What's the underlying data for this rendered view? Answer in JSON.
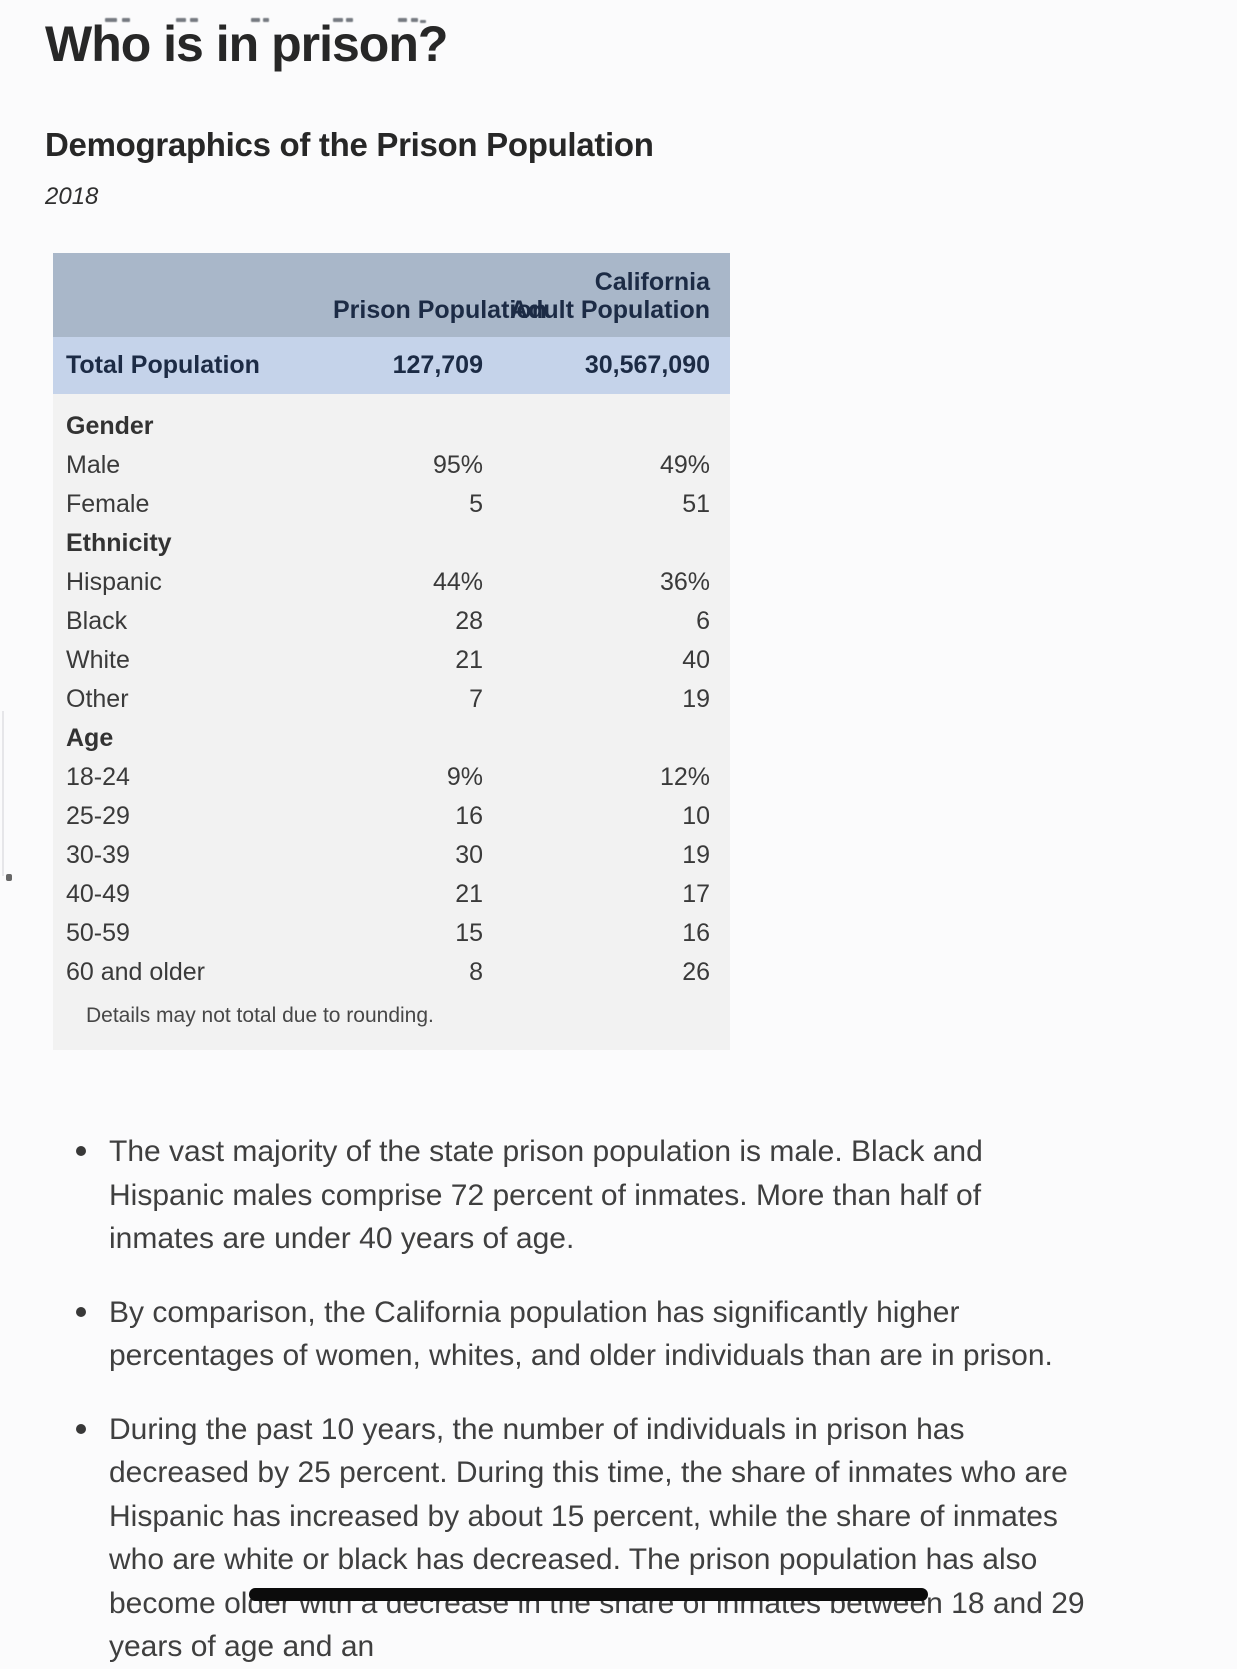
{
  "header": {
    "title": "Who is in prison?",
    "section_title": "Demographics of the Prison Population",
    "subtitle": "2018"
  },
  "table": {
    "col2_header": "Prison Population",
    "col3_header_line1": "California",
    "col3_header_line2": "Adult Population",
    "total": {
      "label": "Total Population",
      "prison": "127,709",
      "california": "30,567,090"
    },
    "sections": [
      {
        "header": "Gender",
        "rows": [
          [
            "Male",
            "95%",
            "49%"
          ],
          [
            "Female",
            "5",
            "51"
          ]
        ]
      },
      {
        "header": "Ethnicity",
        "rows": [
          [
            "Hispanic",
            "44%",
            "36%"
          ],
          [
            "Black",
            "28",
            "6"
          ],
          [
            "White",
            "21",
            "40"
          ],
          [
            "Other",
            "7",
            "19"
          ]
        ]
      },
      {
        "header": "Age",
        "rows": [
          [
            "18-24",
            "9%",
            "12%"
          ],
          [
            "25-29",
            "16",
            "10"
          ],
          [
            "30-39",
            "30",
            "19"
          ],
          [
            "40-49",
            "21",
            "17"
          ],
          [
            "50-59",
            "15",
            "16"
          ],
          [
            "60 and older",
            "8",
            "26"
          ]
        ]
      }
    ],
    "footnote": "Details may not total due to rounding."
  },
  "bullets": [
    "The vast majority of the state prison population is male. Black and Hispanic males comprise 72 percent of inmates. More than half of inmates are under 40 years of age.",
    "By comparison, the California population has significantly higher percentages of women, whites, and older individuals than are in prison.",
    "During the past 10 years, the number of individuals in prison has decreased by 25 percent. During this time, the share of inmates who are Hispanic has increased by about 15 percent, while the share of inmates who are white or black has decreased. The prison population has also become older with a decrease in the share of inmates between 18 and 29 years of age and an"
  ],
  "colors": {
    "header_bg": "#a9b7c9",
    "total_bg": "#c5d3ea",
    "body_bg": "#f2f2f2",
    "header_text": "#1c2b45",
    "bar_color": "#0c0c0c"
  }
}
